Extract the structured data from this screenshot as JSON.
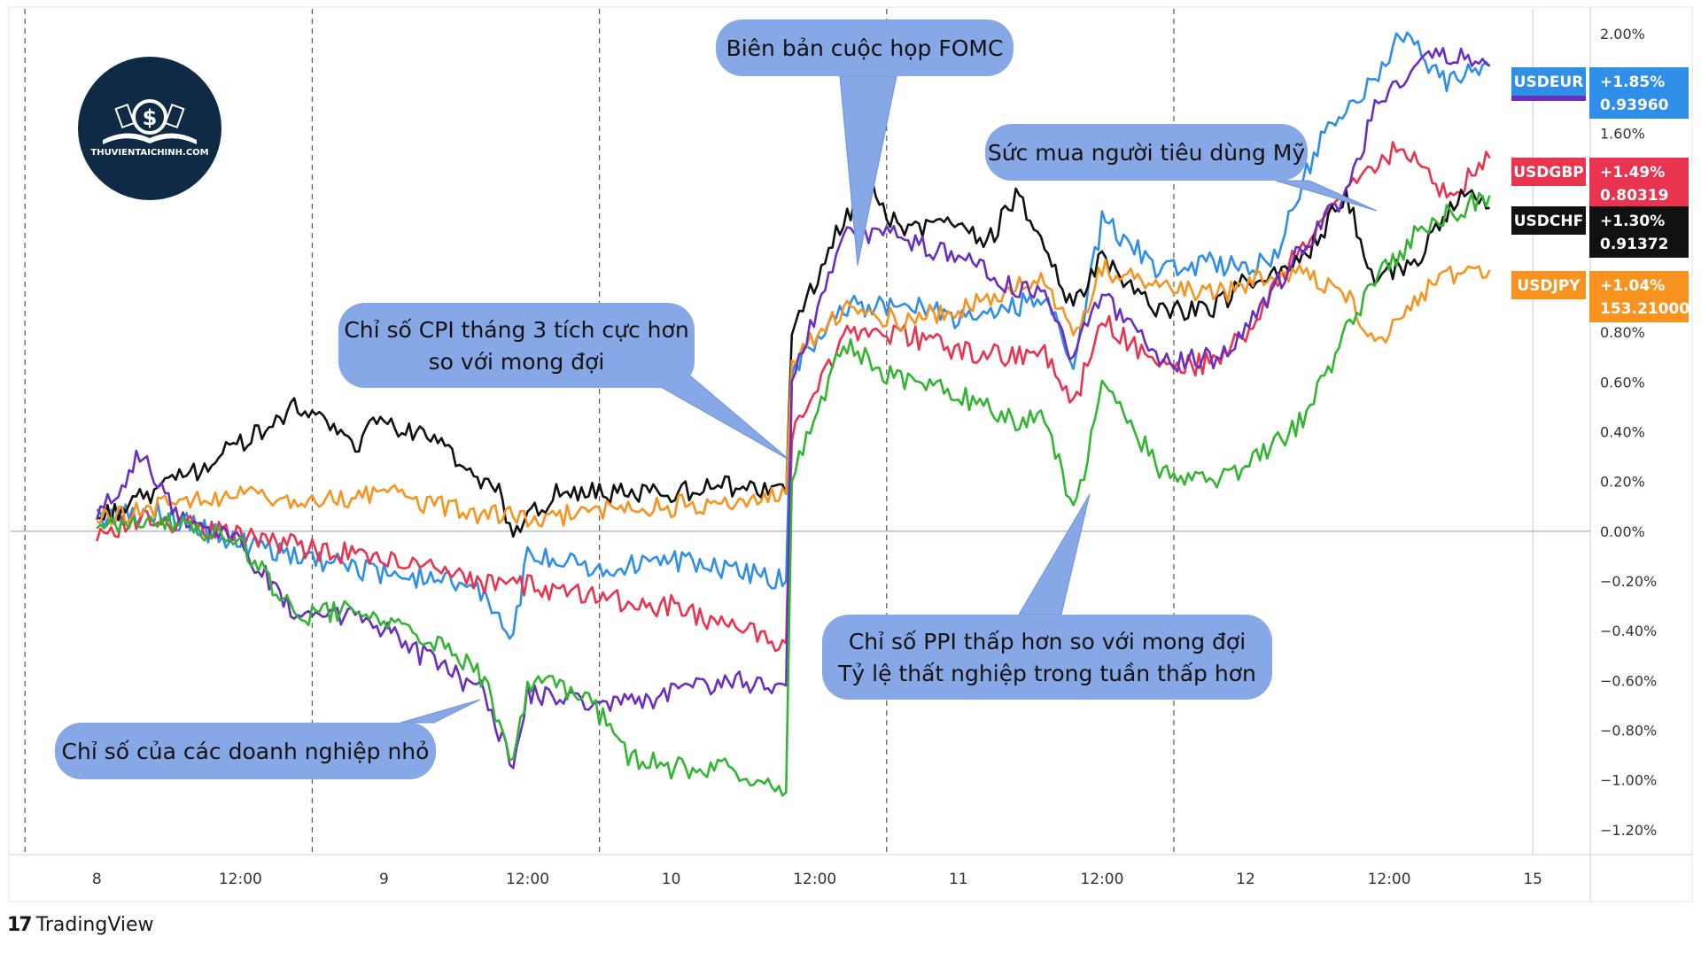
{
  "chart_data": {
    "type": "line",
    "x_ticks": [
      "8",
      "12:00",
      "9",
      "12:00",
      "10",
      "12:00",
      "11",
      "12:00",
      "12",
      "12:00",
      "15"
    ],
    "y_ticks": [
      "2.00%",
      "1.60%",
      "0.80%",
      "0.60%",
      "0.40%",
      "0.20%",
      "0.00%",
      "-0.20%",
      "-0.40%",
      "-0.60%",
      "-0.80%",
      "-1.00%",
      "-1.20%"
    ],
    "ylim": [
      -1.3,
      2.1
    ],
    "grid": {
      "vertical_dashed": true,
      "zero_line": true
    },
    "series": [
      {
        "name": "USDEUR",
        "color": "#2f8ee8",
        "change": "+1.85%",
        "price": "0.93960",
        "points": [
          [
            8.0,
            0.05
          ],
          [
            8.2,
            0.08
          ],
          [
            8.5,
            -0.05
          ],
          [
            8.8,
            -0.12
          ],
          [
            9.0,
            -0.18
          ],
          [
            9.3,
            -0.2
          ],
          [
            9.45,
            -0.42
          ],
          [
            9.5,
            -0.1
          ],
          [
            9.8,
            -0.15
          ],
          [
            10.0,
            -0.12
          ],
          [
            10.2,
            -0.15
          ],
          [
            10.4,
            -0.2
          ],
          [
            10.42,
            0.65
          ],
          [
            10.6,
            0.9
          ],
          [
            10.8,
            0.92
          ],
          [
            11.0,
            0.85
          ],
          [
            11.2,
            0.9
          ],
          [
            11.3,
            0.95
          ],
          [
            11.4,
            0.65
          ],
          [
            11.5,
            1.25
          ],
          [
            11.7,
            1.05
          ],
          [
            11.9,
            1.08
          ],
          [
            12.0,
            1.05
          ],
          [
            12.1,
            1.1
          ],
          [
            12.25,
            1.55
          ],
          [
            12.4,
            1.75
          ],
          [
            12.55,
            2.0
          ],
          [
            12.7,
            1.8
          ],
          [
            12.85,
            1.87
          ]
        ]
      },
      {
        "name": "USDGBP",
        "color": "#e8344f",
        "change": "+1.49%",
        "price": "0.80319",
        "points": [
          [
            8.0,
            0.0
          ],
          [
            8.2,
            0.05
          ],
          [
            8.5,
            -0.02
          ],
          [
            8.8,
            -0.08
          ],
          [
            9.0,
            -0.1
          ],
          [
            9.3,
            -0.2
          ],
          [
            9.5,
            -0.22
          ],
          [
            9.7,
            -0.25
          ],
          [
            9.9,
            -0.3
          ],
          [
            10.0,
            -0.3
          ],
          [
            10.2,
            -0.38
          ],
          [
            10.4,
            -0.45
          ],
          [
            10.42,
            0.4
          ],
          [
            10.6,
            0.78
          ],
          [
            10.8,
            0.8
          ],
          [
            11.0,
            0.72
          ],
          [
            11.2,
            0.7
          ],
          [
            11.3,
            0.72
          ],
          [
            11.4,
            0.5
          ],
          [
            11.5,
            0.85
          ],
          [
            11.7,
            0.65
          ],
          [
            11.9,
            0.68
          ],
          [
            12.0,
            0.8
          ],
          [
            12.2,
            1.15
          ],
          [
            12.4,
            1.45
          ],
          [
            12.55,
            1.55
          ],
          [
            12.7,
            1.35
          ],
          [
            12.85,
            1.5
          ]
        ]
      },
      {
        "name": "USDCHF",
        "color": "#111111",
        "change": "+1.30%",
        "price": "0.91372",
        "points": [
          [
            8.0,
            0.05
          ],
          [
            8.2,
            0.15
          ],
          [
            8.5,
            0.35
          ],
          [
            8.7,
            0.5
          ],
          [
            8.9,
            0.35
          ],
          [
            9.0,
            0.45
          ],
          [
            9.2,
            0.35
          ],
          [
            9.4,
            0.15
          ],
          [
            9.45,
            0.0
          ],
          [
            9.6,
            0.15
          ],
          [
            9.9,
            0.15
          ],
          [
            10.2,
            0.18
          ],
          [
            10.4,
            0.15
          ],
          [
            10.42,
            0.8
          ],
          [
            10.6,
            1.25
          ],
          [
            10.7,
            1.38
          ],
          [
            10.8,
            1.2
          ],
          [
            11.0,
            1.25
          ],
          [
            11.1,
            1.15
          ],
          [
            11.2,
            1.35
          ],
          [
            11.3,
            1.15
          ],
          [
            11.4,
            0.9
          ],
          [
            11.5,
            1.1
          ],
          [
            11.7,
            0.88
          ],
          [
            11.9,
            0.9
          ],
          [
            12.0,
            1.0
          ],
          [
            12.2,
            1.1
          ],
          [
            12.35,
            1.35
          ],
          [
            12.45,
            1.0
          ],
          [
            12.6,
            1.1
          ],
          [
            12.75,
            1.35
          ],
          [
            12.85,
            1.3
          ]
        ]
      },
      {
        "name": "USDJPY",
        "color": "#f7931e",
        "change": "+1.04%",
        "price": "153.21000",
        "points": [
          [
            8.0,
            0.05
          ],
          [
            8.2,
            0.1
          ],
          [
            8.5,
            0.15
          ],
          [
            8.8,
            0.12
          ],
          [
            9.0,
            0.15
          ],
          [
            9.3,
            0.08
          ],
          [
            9.5,
            0.05
          ],
          [
            9.8,
            0.08
          ],
          [
            10.0,
            0.1
          ],
          [
            10.2,
            0.12
          ],
          [
            10.4,
            0.15
          ],
          [
            10.42,
            0.7
          ],
          [
            10.6,
            0.9
          ],
          [
            10.8,
            0.85
          ],
          [
            11.0,
            0.88
          ],
          [
            11.2,
            0.98
          ],
          [
            11.3,
            1.0
          ],
          [
            11.4,
            0.8
          ],
          [
            11.5,
            1.05
          ],
          [
            11.7,
            1.0
          ],
          [
            11.9,
            0.95
          ],
          [
            12.0,
            1.0
          ],
          [
            12.2,
            1.05
          ],
          [
            12.35,
            0.95
          ],
          [
            12.45,
            0.75
          ],
          [
            12.6,
            0.95
          ],
          [
            12.75,
            1.05
          ],
          [
            12.85,
            1.05
          ]
        ]
      },
      {
        "name": "",
        "color": "#6a2fc0",
        "points": [
          [
            8.0,
            0.05
          ],
          [
            8.15,
            0.3
          ],
          [
            8.3,
            0.05
          ],
          [
            8.5,
            -0.05
          ],
          [
            8.7,
            -0.35
          ],
          [
            8.9,
            -0.35
          ],
          [
            9.0,
            -0.4
          ],
          [
            9.2,
            -0.55
          ],
          [
            9.35,
            -0.65
          ],
          [
            9.45,
            -0.95
          ],
          [
            9.5,
            -0.65
          ],
          [
            9.7,
            -0.68
          ],
          [
            9.9,
            -0.7
          ],
          [
            10.0,
            -0.65
          ],
          [
            10.2,
            -0.6
          ],
          [
            10.4,
            -0.62
          ],
          [
            10.42,
            0.6
          ],
          [
            10.6,
            1.2
          ],
          [
            10.8,
            1.18
          ],
          [
            11.0,
            1.1
          ],
          [
            11.2,
            0.98
          ],
          [
            11.3,
            0.95
          ],
          [
            11.4,
            0.7
          ],
          [
            11.5,
            0.95
          ],
          [
            11.7,
            0.68
          ],
          [
            11.9,
            0.7
          ],
          [
            12.0,
            0.8
          ],
          [
            12.2,
            1.15
          ],
          [
            12.35,
            1.35
          ],
          [
            12.45,
            1.7
          ],
          [
            12.6,
            1.9
          ],
          [
            12.75,
            1.9
          ],
          [
            12.85,
            1.87
          ]
        ]
      },
      {
        "name": "",
        "color": "#33b533",
        "points": [
          [
            8.0,
            0.0
          ],
          [
            8.2,
            0.05
          ],
          [
            8.5,
            -0.05
          ],
          [
            8.7,
            -0.35
          ],
          [
            8.9,
            -0.3
          ],
          [
            9.0,
            -0.35
          ],
          [
            9.2,
            -0.45
          ],
          [
            9.35,
            -0.6
          ],
          [
            9.45,
            -0.95
          ],
          [
            9.5,
            -0.6
          ],
          [
            9.7,
            -0.65
          ],
          [
            9.85,
            -0.9
          ],
          [
            10.0,
            -0.95
          ],
          [
            10.2,
            -0.95
          ],
          [
            10.4,
            -1.05
          ],
          [
            10.42,
            0.2
          ],
          [
            10.6,
            0.75
          ],
          [
            10.8,
            0.6
          ],
          [
            11.0,
            0.55
          ],
          [
            11.2,
            0.45
          ],
          [
            11.3,
            0.45
          ],
          [
            11.4,
            0.1
          ],
          [
            11.45,
            0.3
          ],
          [
            11.5,
            0.6
          ],
          [
            11.7,
            0.25
          ],
          [
            11.9,
            0.2
          ],
          [
            12.0,
            0.25
          ],
          [
            12.2,
            0.45
          ],
          [
            12.35,
            0.8
          ],
          [
            12.45,
            1.0
          ],
          [
            12.6,
            1.2
          ],
          [
            12.75,
            1.3
          ],
          [
            12.85,
            1.35
          ]
        ]
      }
    ],
    "annotations": [
      {
        "lines": [
          "Biên bản cuộc họp FOMC"
        ]
      },
      {
        "lines": [
          "Sức mua người tiêu dùng Mỹ"
        ]
      },
      {
        "lines": [
          "Chỉ số CPI tháng 3 tích cực hơn",
          "so với mong đợi"
        ]
      },
      {
        "lines": [
          "Chỉ số PPI thấp hơn so với mong đợi",
          "Tỷ lệ thất nghiệp trong tuần thấp hơn"
        ]
      },
      {
        "lines": [
          "Chỉ số của các doanh nghiệp nhỏ"
        ]
      }
    ]
  },
  "branding": {
    "logo_text": "THUVIENTAICHINH.COM",
    "platform": "TradingView",
    "platform_mark": "17"
  }
}
